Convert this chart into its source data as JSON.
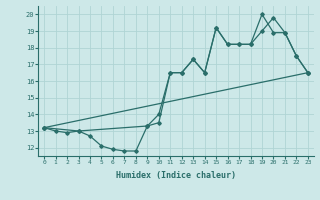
{
  "xlabel": "Humidex (Indice chaleur)",
  "xlim": [
    -0.5,
    23.5
  ],
  "ylim": [
    11.5,
    20.5
  ],
  "yticks": [
    12,
    13,
    14,
    15,
    16,
    17,
    18,
    19,
    20
  ],
  "xticks": [
    0,
    1,
    2,
    3,
    4,
    5,
    6,
    7,
    8,
    9,
    10,
    11,
    12,
    13,
    14,
    15,
    16,
    17,
    18,
    19,
    20,
    21,
    22,
    23
  ],
  "bg_color": "#cde8e8",
  "line_color": "#2a6e6a",
  "grid_color": "#b0d4d4",
  "lines": [
    {
      "x": [
        0,
        1,
        2,
        3,
        4,
        5,
        6,
        7,
        8,
        9,
        10,
        11,
        12,
        13,
        14,
        15,
        16,
        17,
        18,
        19,
        20,
        21,
        22,
        23
      ],
      "y": [
        13.2,
        13.0,
        12.9,
        13.0,
        12.7,
        12.1,
        11.9,
        11.8,
        11.8,
        13.3,
        13.5,
        16.5,
        16.5,
        17.3,
        16.5,
        19.2,
        18.2,
        18.2,
        18.2,
        20.0,
        18.9,
        18.9,
        17.5,
        16.5
      ]
    },
    {
      "x": [
        0,
        3,
        9,
        10,
        11,
        12,
        13,
        14,
        15,
        16,
        17,
        18,
        19,
        20,
        21,
        22,
        23
      ],
      "y": [
        13.2,
        13.0,
        13.3,
        14.0,
        16.5,
        16.5,
        17.3,
        16.5,
        19.2,
        18.2,
        18.2,
        18.2,
        19.0,
        19.8,
        18.9,
        17.5,
        16.5
      ]
    },
    {
      "x": [
        0,
        23
      ],
      "y": [
        13.2,
        16.5
      ]
    }
  ]
}
